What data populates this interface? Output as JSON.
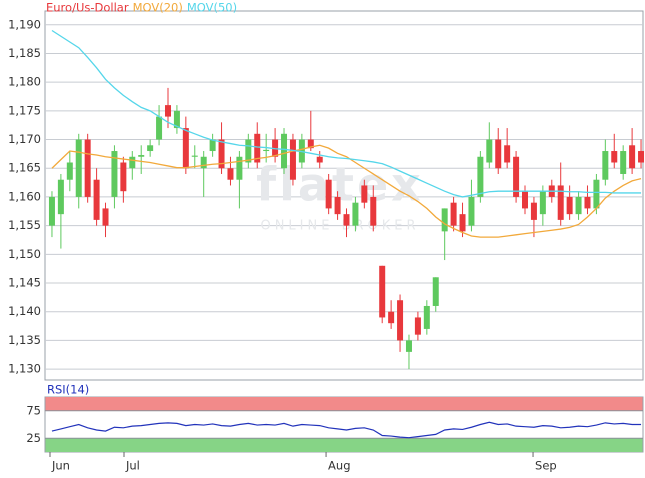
{
  "chart_data": [
    {
      "type": "candlestick",
      "watermark": "flatex",
      "watermark_sub": "ONLINE BROKER",
      "ohlc": {
        "name": "Euro/Us-Dollar",
        "up_color": "#5ec95e",
        "down_color": "#e8383c",
        "open": [
          1.155,
          1.157,
          1.163,
          1.16,
          1.17,
          1.163,
          1.158,
          1.16,
          1.166,
          1.165,
          1.167,
          1.168,
          1.17,
          1.176,
          1.172,
          1.172,
          1.167,
          1.165,
          1.168,
          1.17,
          1.165,
          1.163,
          1.166,
          1.171,
          1.168,
          1.17,
          1.165,
          1.17,
          1.166,
          1.17,
          1.167,
          1.163,
          1.16,
          1.157,
          1.155,
          1.162,
          1.16,
          1.148,
          1.14,
          1.142,
          1.133,
          1.139,
          1.137,
          1.141,
          1.154,
          1.159,
          1.157,
          1.155,
          1.16,
          1.166,
          1.17,
          1.169,
          1.167,
          1.161,
          1.159,
          1.157,
          1.162,
          1.162,
          1.16,
          1.157,
          1.16,
          1.158,
          1.163,
          1.168,
          1.164,
          1.169,
          1.168
        ],
        "high": [
          1.161,
          1.164,
          1.168,
          1.171,
          1.171,
          1.165,
          1.159,
          1.169,
          1.167,
          1.168,
          1.169,
          1.17,
          1.176,
          1.179,
          1.176,
          1.174,
          1.169,
          1.168,
          1.171,
          1.173,
          1.167,
          1.168,
          1.171,
          1.173,
          1.171,
          1.172,
          1.172,
          1.171,
          1.171,
          1.175,
          1.168,
          1.164,
          1.161,
          1.158,
          1.16,
          1.163,
          1.162,
          1.148,
          1.142,
          1.143,
          1.136,
          1.14,
          1.142,
          1.146,
          1.158,
          1.16,
          1.159,
          1.163,
          1.168,
          1.173,
          1.172,
          1.172,
          1.168,
          1.162,
          1.16,
          1.162,
          1.163,
          1.166,
          1.162,
          1.161,
          1.162,
          1.164,
          1.17,
          1.171,
          1.169,
          1.172,
          1.17
        ],
        "low": [
          1.153,
          1.151,
          1.161,
          1.158,
          1.159,
          1.155,
          1.153,
          1.158,
          1.159,
          1.163,
          1.164,
          1.167,
          1.169,
          1.172,
          1.171,
          1.164,
          1.165,
          1.16,
          1.167,
          1.164,
          1.162,
          1.158,
          1.165,
          1.165,
          1.166,
          1.166,
          1.164,
          1.162,
          1.165,
          1.168,
          1.165,
          1.157,
          1.156,
          1.153,
          1.154,
          1.158,
          1.154,
          1.138,
          1.137,
          1.133,
          1.13,
          1.135,
          1.136,
          1.14,
          1.149,
          1.154,
          1.153,
          1.154,
          1.159,
          1.165,
          1.164,
          1.165,
          1.159,
          1.157,
          1.153,
          1.155,
          1.159,
          1.155,
          1.156,
          1.156,
          1.157,
          1.157,
          1.162,
          1.165,
          1.163,
          1.164,
          1.165
        ],
        "close": [
          1.16,
          1.163,
          1.166,
          1.17,
          1.16,
          1.156,
          1.155,
          1.168,
          1.161,
          1.167,
          1.1673,
          1.169,
          1.174,
          1.174,
          1.175,
          1.165,
          1.1672,
          1.167,
          1.17,
          1.165,
          1.163,
          1.167,
          1.17,
          1.166,
          1.1682,
          1.167,
          1.171,
          1.163,
          1.17,
          1.1685,
          1.166,
          1.158,
          1.157,
          1.155,
          1.159,
          1.159,
          1.155,
          1.139,
          1.138,
          1.135,
          1.135,
          1.136,
          1.141,
          1.146,
          1.158,
          1.155,
          1.154,
          1.16,
          1.167,
          1.17,
          1.165,
          1.166,
          1.16,
          1.158,
          1.156,
          1.161,
          1.16,
          1.156,
          1.157,
          1.16,
          1.158,
          1.163,
          1.168,
          1.166,
          1.168,
          1.165,
          1.166
        ]
      },
      "series": [
        {
          "name": "MOV(20)",
          "color": "#f2a93b",
          "values": [
            1.165,
            1.1665,
            1.168,
            1.1678,
            1.1675,
            1.1673,
            1.167,
            1.1668,
            1.1666,
            1.1664,
            1.1662,
            1.166,
            1.1657,
            1.1654,
            1.1651,
            1.1651,
            1.1653,
            1.1655,
            1.1657,
            1.1658,
            1.166,
            1.1662,
            1.1664,
            1.1667,
            1.1669,
            1.1672,
            1.1676,
            1.168,
            1.1683,
            1.1687,
            1.169,
            1.1685,
            1.1676,
            1.167,
            1.166,
            1.165,
            1.164,
            1.163,
            1.162,
            1.161,
            1.1602,
            1.1592,
            1.158,
            1.1565,
            1.1553,
            1.1545,
            1.1538,
            1.1532,
            1.153,
            1.153,
            1.153,
            1.1532,
            1.1534,
            1.1536,
            1.1538,
            1.154,
            1.1542,
            1.1544,
            1.1547,
            1.1552,
            1.1565,
            1.158,
            1.1598,
            1.161,
            1.162,
            1.1628,
            1.1632
          ]
        },
        {
          "name": "MOV(50)",
          "color": "#55d6ea",
          "values": [
            1.189,
            1.188,
            1.187,
            1.186,
            1.1843,
            1.1825,
            1.1805,
            1.179,
            1.1777,
            1.1766,
            1.1756,
            1.175,
            1.174,
            1.173,
            1.1723,
            1.1716,
            1.171,
            1.1704,
            1.1699,
            1.1696,
            1.1693,
            1.169,
            1.1689,
            1.1687,
            1.1686,
            1.1684,
            1.1683,
            1.1681,
            1.1679,
            1.1676,
            1.1673,
            1.167,
            1.1668,
            1.1667,
            1.1665,
            1.1663,
            1.1661,
            1.1658,
            1.1652,
            1.1645,
            1.1638,
            1.1631,
            1.1624,
            1.1617,
            1.161,
            1.1604,
            1.16,
            1.1603,
            1.1606,
            1.1609,
            1.161,
            1.161,
            1.161,
            1.161,
            1.161,
            1.161,
            1.161,
            1.161,
            1.1609,
            1.1609,
            1.1608,
            1.1608,
            1.1608,
            1.1607,
            1.1607,
            1.1607,
            1.1607
          ]
        }
      ],
      "x": [
        0,
        1,
        2,
        3,
        4,
        5,
        6,
        7,
        8,
        9,
        10,
        11,
        12,
        13,
        14,
        15,
        16,
        17,
        18,
        19,
        20,
        21,
        22,
        23,
        24,
        25,
        26,
        27,
        28,
        29,
        30,
        31,
        32,
        33,
        34,
        35,
        36,
        37,
        38,
        39,
        40,
        41,
        42,
        43,
        44,
        45,
        46,
        47,
        48,
        49,
        50,
        51,
        52,
        53,
        54,
        55,
        56,
        57,
        58,
        59,
        60,
        61,
        62,
        63,
        64,
        65,
        66
      ],
      "xlim": [
        -0.78,
        66.22
      ],
      "ylim": [
        1.1281,
        1.1924
      ],
      "yticks": [
        {
          "value": 1.13,
          "label": "1,130"
        },
        {
          "value": 1.135,
          "label": "1,135"
        },
        {
          "value": 1.14,
          "label": "1,140"
        },
        {
          "value": 1.145,
          "label": "1,145"
        },
        {
          "value": 1.15,
          "label": "1,150"
        },
        {
          "value": 1.155,
          "label": "1,155"
        },
        {
          "value": 1.16,
          "label": "1,160"
        },
        {
          "value": 1.165,
          "label": "1,165"
        },
        {
          "value": 1.17,
          "label": "1,170"
        },
        {
          "value": 1.175,
          "label": "1,175"
        },
        {
          "value": 1.18,
          "label": "1,180"
        },
        {
          "value": 1.185,
          "label": "1,185"
        },
        {
          "value": 1.19,
          "label": "1,190"
        }
      ],
      "grid": true
    },
    {
      "type": "line",
      "series": [
        {
          "name": "RSI(14)",
          "color": "#2233bb",
          "values": [
            38,
            42,
            46,
            50,
            44,
            40,
            38,
            45,
            44,
            47,
            48,
            50,
            52,
            53,
            52,
            48,
            50,
            49,
            51,
            48,
            47,
            50,
            52,
            49,
            50,
            49,
            52,
            47,
            50,
            49,
            48,
            44,
            42,
            40,
            43,
            44,
            40,
            30,
            29,
            27,
            26,
            28,
            30,
            32,
            40,
            42,
            41,
            45,
            50,
            54,
            50,
            51,
            47,
            46,
            45,
            48,
            47,
            44,
            45,
            47,
            46,
            49,
            53,
            51,
            52,
            50,
            50
          ]
        }
      ],
      "bands": [
        {
          "from": 75,
          "to": 100,
          "color": "#f28a8a"
        },
        {
          "from": 0,
          "to": 25,
          "color": "#86d486"
        }
      ],
      "x": [
        0,
        1,
        2,
        3,
        4,
        5,
        6,
        7,
        8,
        9,
        10,
        11,
        12,
        13,
        14,
        15,
        16,
        17,
        18,
        19,
        20,
        21,
        22,
        23,
        24,
        25,
        26,
        27,
        28,
        29,
        30,
        31,
        32,
        33,
        34,
        35,
        36,
        37,
        38,
        39,
        40,
        41,
        42,
        43,
        44,
        45,
        46,
        47,
        48,
        49,
        50,
        51,
        52,
        53,
        54,
        55,
        56,
        57,
        58,
        59,
        60,
        61,
        62,
        63,
        64,
        65,
        66
      ],
      "xlim": [
        -0.78,
        66.22
      ],
      "xticks": [
        {
          "value": -0.22,
          "label": "Jun"
        },
        {
          "value": 8.07,
          "label": "Jul"
        },
        {
          "value": 30.71,
          "label": "Aug"
        },
        {
          "value": 53.9,
          "label": "Sep"
        }
      ],
      "ylim": [
        0,
        100
      ],
      "yticks": [
        25,
        75
      ]
    }
  ]
}
